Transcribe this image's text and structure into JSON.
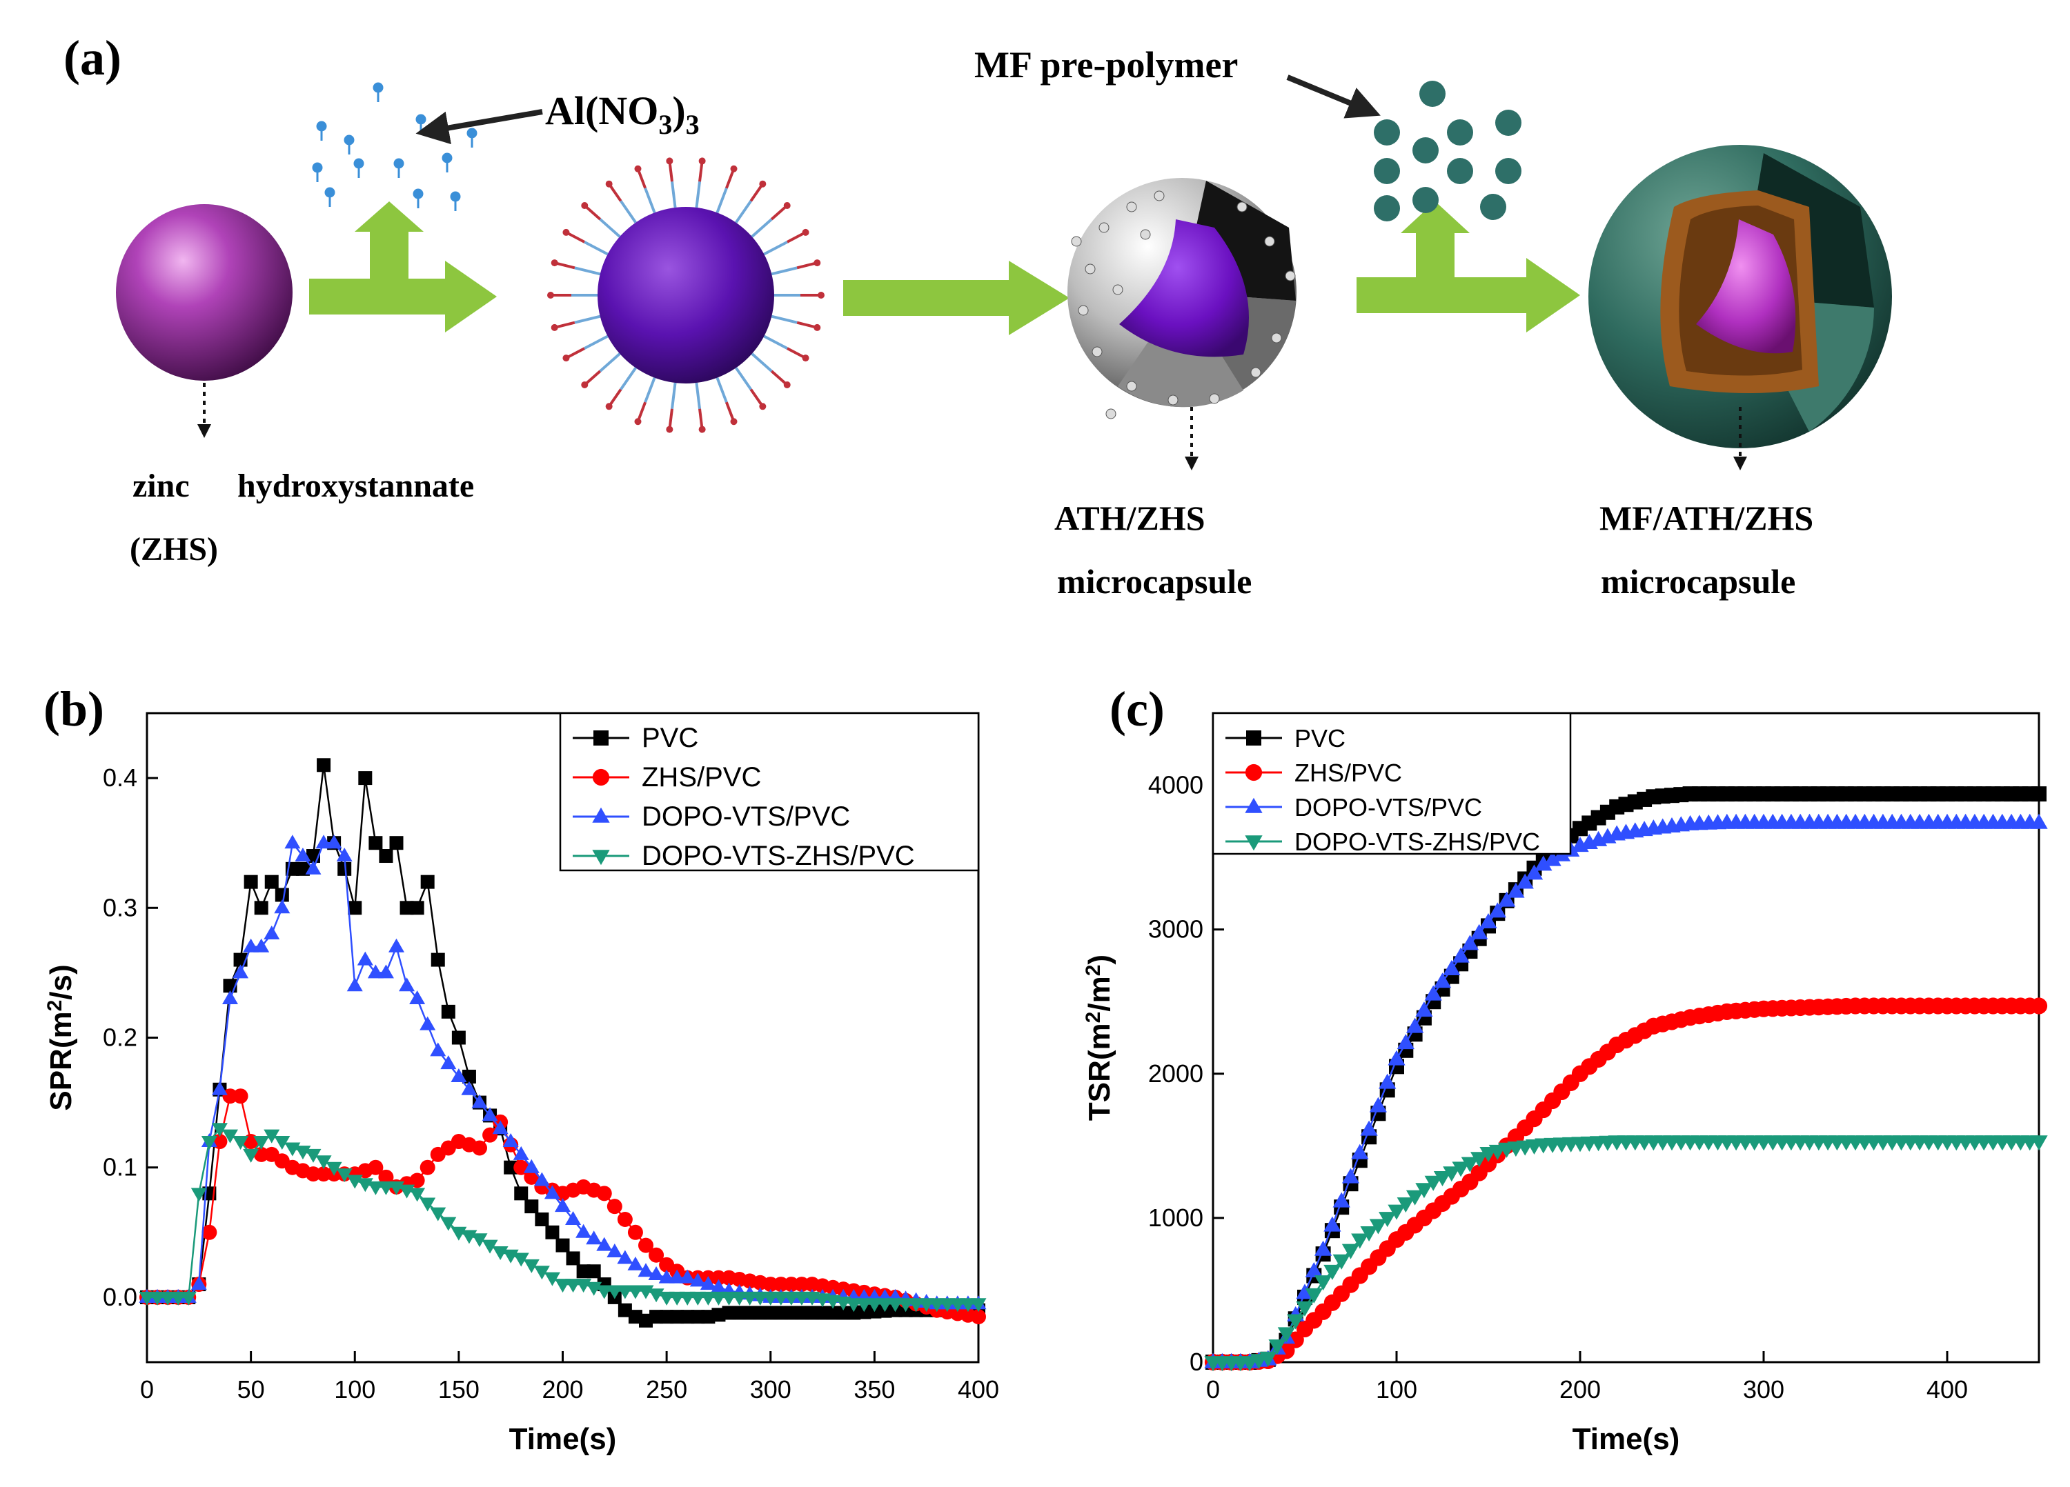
{
  "colors": {
    "arrow_green": "#8DC63F",
    "zhs_purple": "#9B2FA8",
    "mf_teal": "#2F6B5F",
    "ath_orange": "#9C5A1E",
    "series": {
      "PVC": "#000000",
      "ZHS/PVC": "#FF0000",
      "DOPO-VTS/PVC": "#2F4FFF",
      "DOPO-VTS-ZHS/PVC": "#1A9A7A"
    }
  },
  "scheme": {
    "panel_label": "(a)",
    "al_label_main": "Al(NO",
    "al_label_sub": "3",
    "al_label_close": ")",
    "al_label_sub2": "3",
    "mf_label": "MF pre-polymer",
    "zhs_line1_a": "zinc",
    "zhs_line1_b": "hydroxystannate",
    "zhs_line2": "(ZHS)",
    "ath_line1": "ATH/ZHS",
    "ath_line2": "microcapsule",
    "mfath_line1": "MF/ATH/ZHS",
    "mfath_line2": "microcapsule"
  },
  "chart_data": [
    {
      "type": "line",
      "panel_label": "(b)",
      "xlabel": "Time(s)",
      "ylabel_main": "SPR(m",
      "ylabel_sup": "2",
      "ylabel_end": "/s)",
      "xlim": [
        0,
        400
      ],
      "ylim": [
        -0.05,
        0.45
      ],
      "xticks": [
        0,
        50,
        100,
        150,
        200,
        250,
        300,
        350,
        400
      ],
      "yticks": [
        0.0,
        0.1,
        0.2,
        0.3,
        0.4
      ],
      "ytick_labels": [
        "0.0",
        "0.1",
        "0.2",
        "0.3",
        "0.4"
      ],
      "legend_position": "top-right",
      "series": [
        {
          "name": "PVC",
          "marker": "square",
          "x": [
            0,
            5,
            10,
            15,
            20,
            25,
            30,
            35,
            40,
            45,
            50,
            55,
            60,
            65,
            70,
            75,
            80,
            85,
            90,
            95,
            100,
            105,
            110,
            115,
            120,
            125,
            130,
            135,
            140,
            145,
            150,
            155,
            160,
            165,
            170,
            175,
            180,
            185,
            190,
            195,
            200,
            205,
            210,
            215,
            220,
            225,
            230,
            235,
            240,
            245,
            250,
            260,
            270,
            280,
            300,
            320,
            340,
            360,
            380,
            400
          ],
          "y": [
            0,
            0,
            0,
            0,
            0,
            0.01,
            0.08,
            0.16,
            0.24,
            0.26,
            0.32,
            0.3,
            0.32,
            0.31,
            0.33,
            0.33,
            0.34,
            0.41,
            0.35,
            0.33,
            0.3,
            0.4,
            0.35,
            0.34,
            0.35,
            0.3,
            0.3,
            0.32,
            0.26,
            0.22,
            0.2,
            0.17,
            0.15,
            0.14,
            0.13,
            0.1,
            0.08,
            0.07,
            0.06,
            0.05,
            0.04,
            0.03,
            0.02,
            0.02,
            0.01,
            0,
            -0.01,
            -0.015,
            -0.018,
            -0.015,
            -0.015,
            -0.015,
            -0.015,
            -0.012,
            -0.012,
            -0.012,
            -0.012,
            -0.01,
            -0.01,
            -0.01
          ]
        },
        {
          "name": "ZHS/PVC",
          "marker": "circle",
          "x": [
            0,
            10,
            20,
            25,
            30,
            35,
            40,
            45,
            50,
            55,
            60,
            70,
            80,
            90,
            100,
            110,
            120,
            130,
            140,
            150,
            160,
            170,
            180,
            190,
            200,
            210,
            220,
            230,
            240,
            250,
            260,
            270,
            280,
            300,
            320,
            340,
            360,
            380,
            400
          ],
          "y": [
            0,
            0,
            0,
            0.01,
            0.05,
            0.12,
            0.155,
            0.155,
            0.12,
            0.11,
            0.11,
            0.1,
            0.095,
            0.095,
            0.095,
            0.1,
            0.085,
            0.09,
            0.11,
            0.12,
            0.115,
            0.135,
            0.1,
            0.085,
            0.08,
            0.085,
            0.08,
            0.06,
            0.04,
            0.025,
            0.015,
            0.015,
            0.015,
            0.01,
            0.01,
            0.005,
            0,
            -0.01,
            -0.015
          ]
        },
        {
          "name": "DOPO-VTS/PVC",
          "marker": "triangle-up",
          "x": [
            0,
            10,
            20,
            25,
            30,
            35,
            40,
            45,
            50,
            55,
            60,
            65,
            70,
            75,
            80,
            85,
            90,
            95,
            100,
            105,
            110,
            115,
            120,
            125,
            130,
            135,
            140,
            145,
            150,
            160,
            170,
            180,
            190,
            200,
            210,
            220,
            230,
            240,
            250,
            260,
            280,
            300,
            320,
            340,
            360,
            380,
            400
          ],
          "y": [
            0,
            0,
            0,
            0.01,
            0.12,
            0.16,
            0.23,
            0.25,
            0.27,
            0.27,
            0.28,
            0.3,
            0.35,
            0.34,
            0.33,
            0.35,
            0.35,
            0.34,
            0.24,
            0.26,
            0.25,
            0.25,
            0.27,
            0.24,
            0.23,
            0.21,
            0.19,
            0.18,
            0.17,
            0.15,
            0.13,
            0.11,
            0.09,
            0.07,
            0.05,
            0.04,
            0.03,
            0.02,
            0.015,
            0.015,
            0.005,
            0,
            0,
            0,
            0,
            -0.005,
            -0.005
          ]
        },
        {
          "name": "DOPO-VTS-ZHS/PVC",
          "marker": "triangle-down",
          "x": [
            0,
            10,
            20,
            25,
            30,
            35,
            40,
            45,
            50,
            55,
            60,
            65,
            70,
            80,
            90,
            100,
            110,
            120,
            130,
            140,
            150,
            160,
            170,
            180,
            190,
            200,
            210,
            220,
            230,
            240,
            250,
            260,
            280,
            300,
            320,
            340,
            360,
            380,
            400
          ],
          "y": [
            0,
            0,
            0,
            0.08,
            0.12,
            0.13,
            0.125,
            0.12,
            0.11,
            0.12,
            0.125,
            0.12,
            0.115,
            0.11,
            0.1,
            0.09,
            0.085,
            0.085,
            0.08,
            0.065,
            0.05,
            0.045,
            0.035,
            0.03,
            0.02,
            0.01,
            0.01,
            0.005,
            0.005,
            0.005,
            0,
            0,
            0,
            0,
            0,
            -0.005,
            -0.005,
            -0.005,
            -0.005
          ]
        }
      ]
    },
    {
      "type": "line",
      "panel_label": "(c)",
      "xlabel": "Time(s)",
      "ylabel_main": "TSR(m",
      "ylabel_sup": "2",
      "ylabel_mid": "/m",
      "ylabel_sup2": "2",
      "ylabel_end": ")",
      "xlim": [
        0,
        450
      ],
      "ylim": [
        0,
        4500
      ],
      "xticks": [
        0,
        100,
        200,
        300,
        400
      ],
      "yticks": [
        0,
        1000,
        2000,
        3000,
        4000
      ],
      "ytick_labels": [
        "0",
        "1000",
        "2000",
        "3000",
        "4000"
      ],
      "legend_position": "top-left",
      "series": [
        {
          "name": "PVC",
          "marker": "square",
          "x": [
            0,
            20,
            30,
            40,
            50,
            60,
            80,
            100,
            120,
            140,
            160,
            180,
            200,
            220,
            240,
            260,
            280,
            300,
            350,
            400,
            450
          ],
          "y": [
            0,
            0,
            20,
            150,
            450,
            750,
            1400,
            2050,
            2500,
            2850,
            3200,
            3500,
            3700,
            3850,
            3920,
            3940,
            3940,
            3940,
            3940,
            3940,
            3940
          ]
        },
        {
          "name": "ZHS/PVC",
          "marker": "circle",
          "x": [
            0,
            20,
            30,
            40,
            50,
            60,
            80,
            100,
            120,
            140,
            160,
            180,
            200,
            220,
            240,
            260,
            280,
            300,
            350,
            400,
            450
          ],
          "y": [
            0,
            0,
            10,
            80,
            230,
            350,
            600,
            850,
            1050,
            1250,
            1500,
            1750,
            2000,
            2200,
            2330,
            2390,
            2430,
            2450,
            2470,
            2470,
            2470
          ]
        },
        {
          "name": "DOPO-VTS/PVC",
          "marker": "triangle-up",
          "x": [
            0,
            20,
            30,
            40,
            50,
            60,
            80,
            100,
            120,
            140,
            160,
            180,
            200,
            220,
            240,
            260,
            280,
            300,
            350,
            400,
            450
          ],
          "y": [
            0,
            0,
            20,
            170,
            480,
            780,
            1450,
            2100,
            2550,
            2900,
            3200,
            3450,
            3580,
            3660,
            3700,
            3730,
            3740,
            3740,
            3740,
            3740,
            3740
          ]
        },
        {
          "name": "DOPO-VTS-ZHS/PVC",
          "marker": "triangle-down",
          "x": [
            0,
            20,
            30,
            40,
            50,
            60,
            80,
            100,
            120,
            140,
            150,
            160,
            180,
            200,
            220,
            250,
            300,
            350,
            400,
            450
          ],
          "y": [
            0,
            0,
            30,
            200,
            380,
            560,
            850,
            1050,
            1250,
            1380,
            1450,
            1480,
            1510,
            1520,
            1530,
            1530,
            1530,
            1530,
            1530,
            1530
          ]
        }
      ]
    }
  ]
}
